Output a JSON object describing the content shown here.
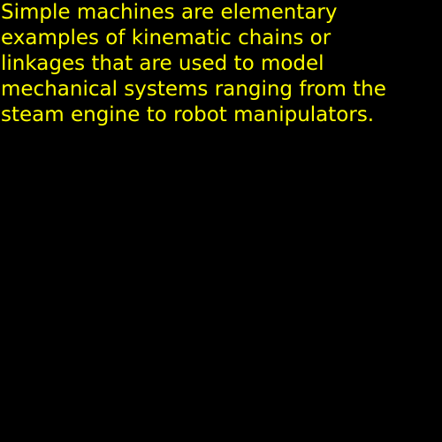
{
  "caption": {
    "lines": [
      "Simple machines are elementary",
      "examples of kinematic chains or",
      "linkages that are used to model",
      "mechanical systems ranging from the",
      "steam engine to robot manipulators."
    ],
    "color": "#ffff00"
  },
  "background_color": "#000000"
}
